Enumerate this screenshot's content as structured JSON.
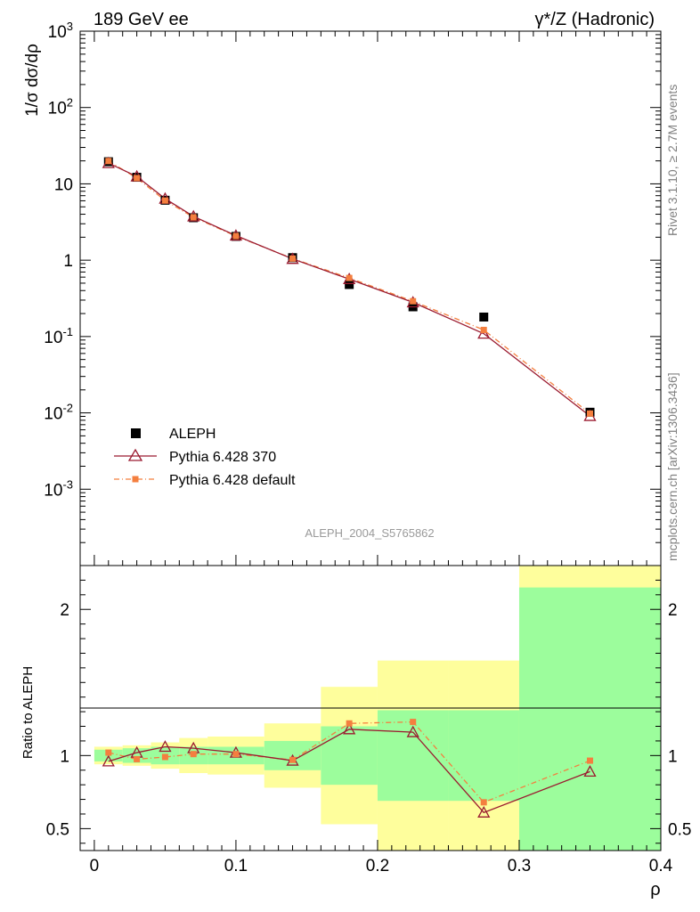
{
  "header": {
    "left": "189 GeV ee",
    "right": "γ*/Z (Hadronic)"
  },
  "side_labels": {
    "rivet": "Rivet 3.1.10, ≥ 2.7M events",
    "mcplots": "mcplots.cern.ch [arXiv:1306.3436]"
  },
  "analysis_id": "ALEPH_2004_S5765862",
  "colors": {
    "data": "#000000",
    "pythia370": "#9b1b30",
    "pythia_default": "#f47f3f",
    "band_inner": "#9cfd9c",
    "band_outer": "#fefe9c"
  },
  "chart_data": [
    {
      "type": "scatter",
      "panel": "main",
      "ylabel": "1/σ  dσ/dρ",
      "yscale": "log",
      "ylim": [
        0.0001,
        1000
      ],
      "xlim": [
        -0.01,
        0.4
      ],
      "ytick_labels": [
        "10^3",
        "10^2",
        "10",
        "1",
        "10^-1",
        "10^-2",
        "10^-3"
      ],
      "legend_position": "lower-left",
      "series": [
        {
          "name": "ALEPH",
          "style": "markers",
          "x": [
            0.01,
            0.03,
            0.05,
            0.07,
            0.1,
            0.14,
            0.18,
            0.225,
            0.275,
            0.35
          ],
          "y": [
            19.5,
            12.2,
            6.1,
            3.6,
            2.05,
            1.08,
            0.48,
            0.245,
            0.18,
            0.0102
          ]
        },
        {
          "name": "Pythia 6.428 370",
          "style": "line+triangles",
          "x": [
            0.01,
            0.03,
            0.05,
            0.07,
            0.1,
            0.14,
            0.18,
            0.225,
            0.275,
            0.35
          ],
          "y": [
            18.7,
            12.5,
            6.4,
            3.75,
            2.1,
            1.04,
            0.565,
            0.28,
            0.109,
            0.0091
          ]
        },
        {
          "name": "Pythia 6.428 default",
          "style": "dashdot+squares",
          "x": [
            0.01,
            0.03,
            0.05,
            0.07,
            0.1,
            0.14,
            0.18,
            0.225,
            0.275,
            0.35
          ],
          "y": [
            19.9,
            11.9,
            6.05,
            3.65,
            2.07,
            1.05,
            0.585,
            0.29,
            0.122,
            0.0098
          ]
        }
      ]
    },
    {
      "type": "line",
      "panel": "ratio",
      "xlabel": "ρ",
      "ylabel": "Ratio to ALEPH",
      "xlim": [
        -0.01,
        0.4
      ],
      "ylim": [
        0.35,
        2.3
      ],
      "xtick_labels": [
        "0",
        "0.1",
        "0.2",
        "0.3",
        "0.4"
      ],
      "ytick_labels": [
        "0.5",
        "1",
        "2"
      ],
      "bins": [
        {
          "lo": 0.0,
          "hi": 0.02,
          "inner": [
            0.96,
            1.04
          ],
          "outer": [
            0.94,
            1.06
          ]
        },
        {
          "lo": 0.02,
          "hi": 0.04,
          "inner": [
            0.95,
            1.05
          ],
          "outer": [
            0.93,
            1.07
          ]
        },
        {
          "lo": 0.04,
          "hi": 0.06,
          "inner": [
            0.94,
            1.06
          ],
          "outer": [
            0.91,
            1.09
          ]
        },
        {
          "lo": 0.06,
          "hi": 0.08,
          "inner": [
            0.94,
            1.06
          ],
          "outer": [
            0.88,
            1.12
          ]
        },
        {
          "lo": 0.08,
          "hi": 0.12,
          "inner": [
            0.94,
            1.06
          ],
          "outer": [
            0.87,
            1.13
          ]
        },
        {
          "lo": 0.12,
          "hi": 0.16,
          "inner": [
            0.9,
            1.1
          ],
          "outer": [
            0.78,
            1.22
          ]
        },
        {
          "lo": 0.16,
          "hi": 0.2,
          "inner": [
            0.8,
            1.2
          ],
          "outer": [
            0.53,
            1.47
          ]
        },
        {
          "lo": 0.2,
          "hi": 0.25,
          "inner": [
            0.69,
            1.31
          ],
          "outer": [
            0.35,
            1.65
          ]
        },
        {
          "lo": 0.25,
          "hi": 0.3,
          "inner": [
            0.69,
            1.31
          ],
          "outer": [
            0.35,
            1.65
          ]
        },
        {
          "lo": 0.3,
          "hi": 0.4,
          "inner": [
            0.35,
            2.15
          ],
          "outer": [
            0.35,
            2.3
          ]
        }
      ],
      "series": [
        {
          "name": "Pythia 6.428 370",
          "x": [
            0.01,
            0.03,
            0.05,
            0.07,
            0.1,
            0.14,
            0.18,
            0.225,
            0.275,
            0.35
          ],
          "y": [
            0.96,
            1.02,
            1.06,
            1.05,
            1.02,
            0.965,
            1.18,
            1.16,
            0.61,
            0.89
          ]
        },
        {
          "name": "Pythia 6.428 default",
          "x": [
            0.01,
            0.03,
            0.05,
            0.07,
            0.1,
            0.14,
            0.18,
            0.225,
            0.275,
            0.35
          ],
          "y": [
            1.02,
            0.975,
            0.99,
            1.01,
            1.01,
            0.97,
            1.22,
            1.23,
            0.68,
            0.965
          ]
        }
      ]
    }
  ]
}
